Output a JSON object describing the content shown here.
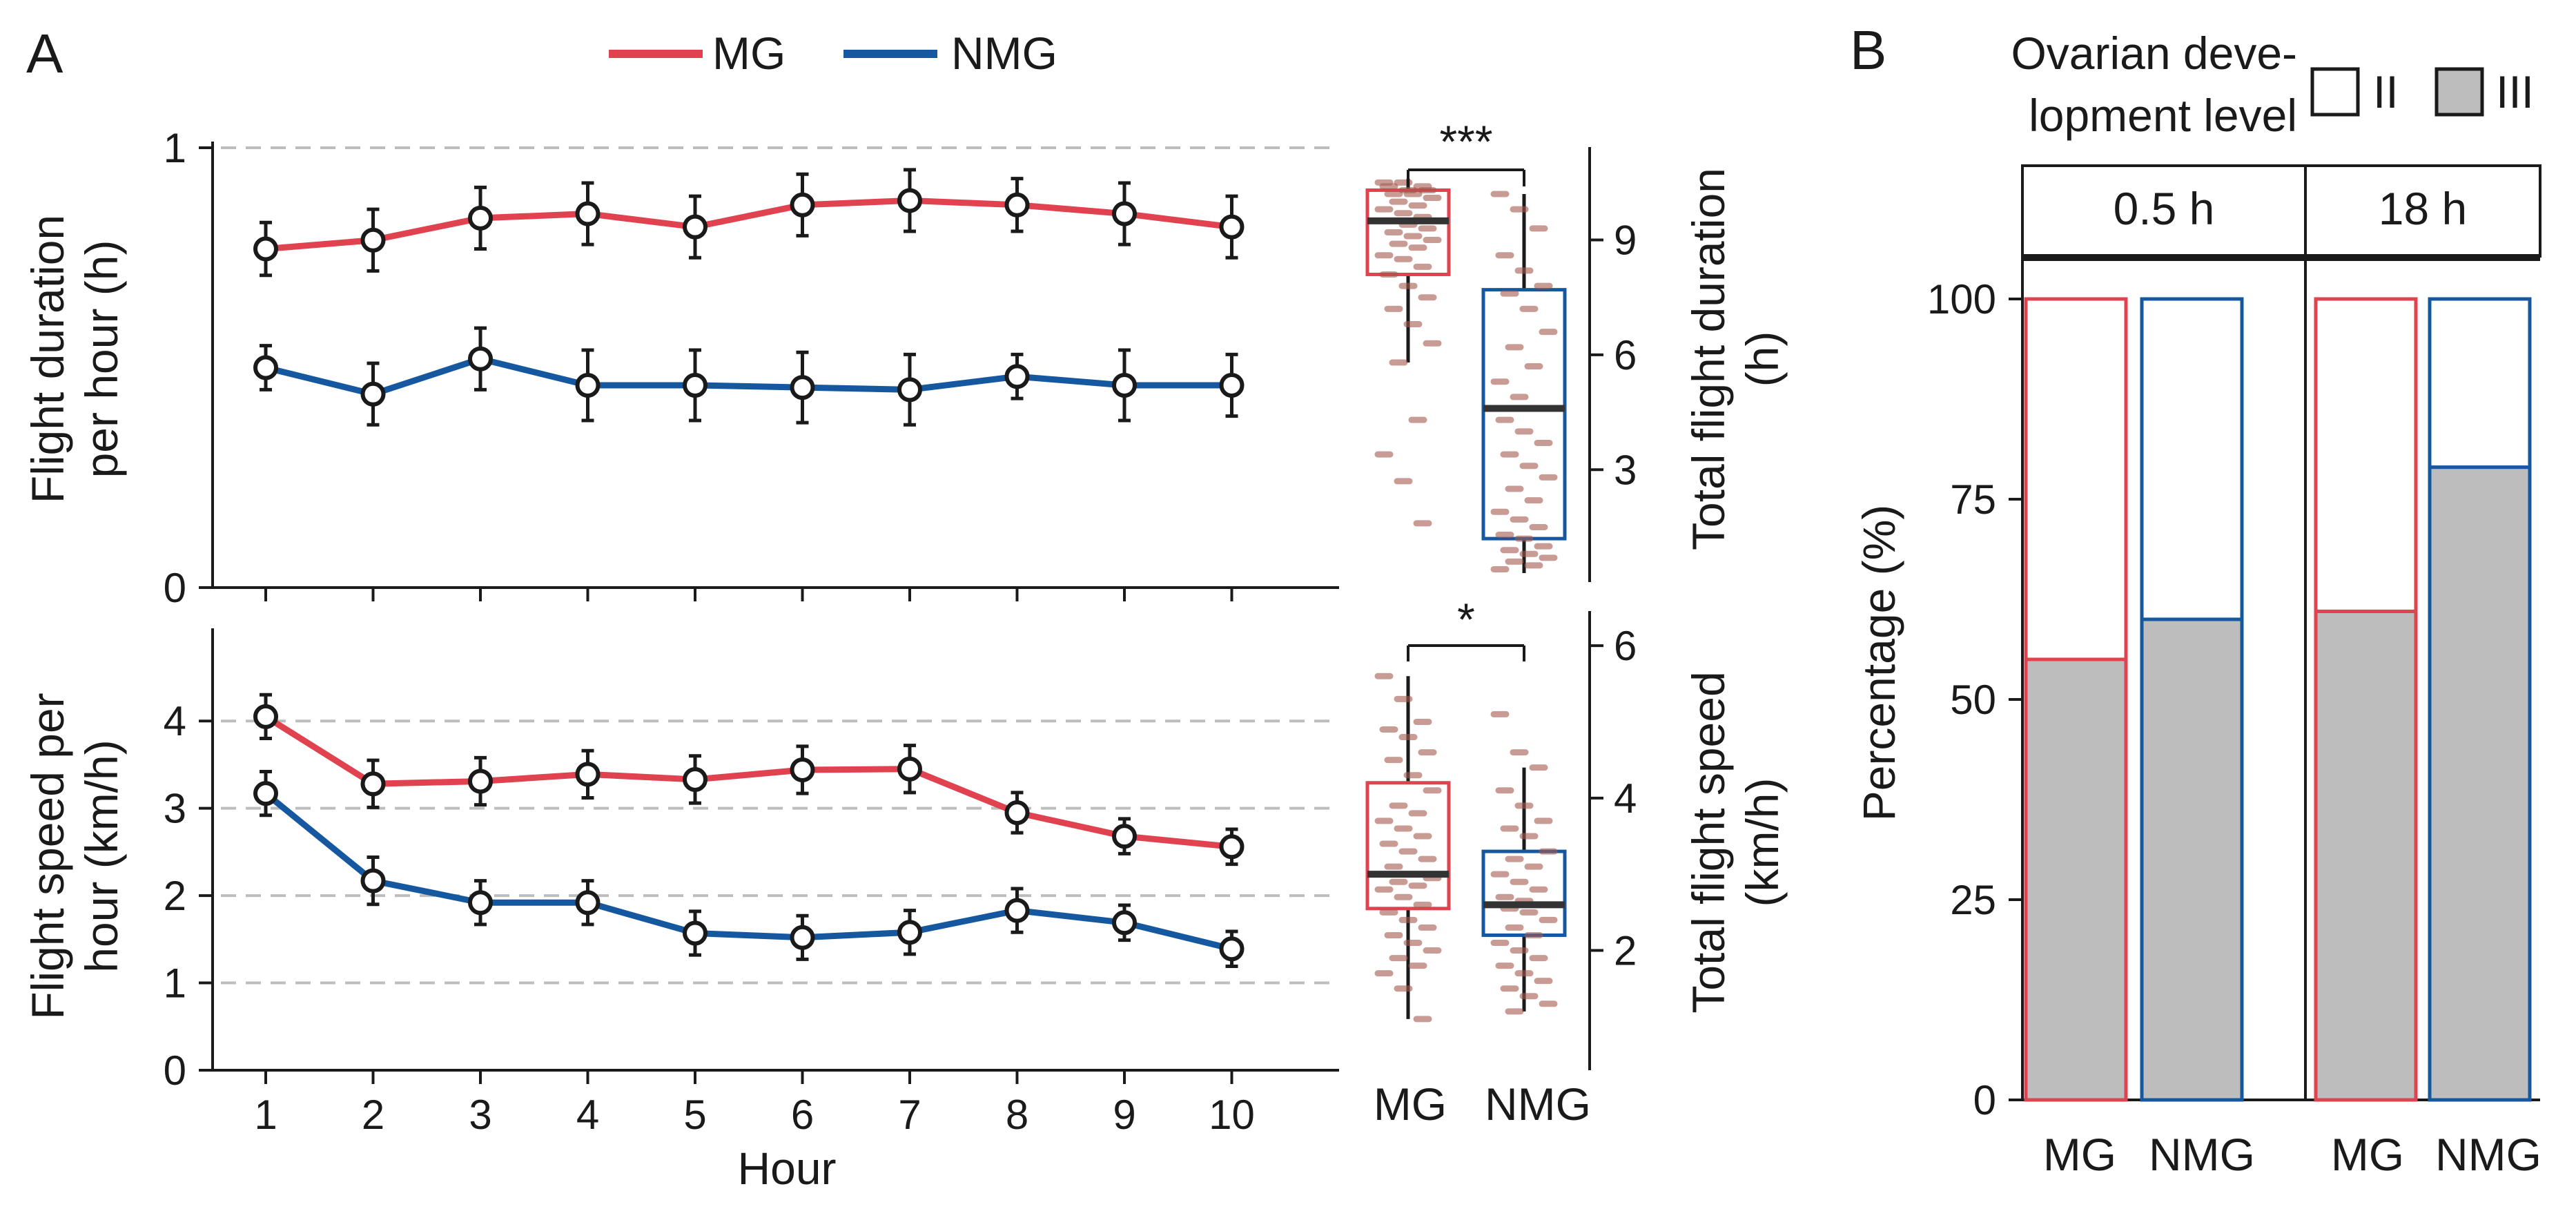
{
  "colors": {
    "MG": "#e0424f",
    "NMG": "#1558a0",
    "jitter": "#a4584f",
    "bar_fill": "#bdbdbd",
    "grid": "#bdbdbd"
  },
  "panels": {
    "A": "A",
    "B": "B"
  },
  "legend": {
    "entries": [
      "MG",
      "NMG"
    ]
  },
  "chart_data": [
    {
      "id": "duration",
      "type": "line",
      "ylabel": [
        "Flight duration",
        "per hour (h)"
      ],
      "xlabel": "",
      "x": [
        1,
        2,
        3,
        4,
        5,
        6,
        7,
        8,
        9,
        10
      ],
      "ylim": [
        0,
        1
      ],
      "yticks": [
        0,
        1
      ],
      "grid_y": [
        1
      ],
      "series": [
        {
          "name": "MG",
          "values": [
            0.77,
            0.79,
            0.84,
            0.85,
            0.82,
            0.87,
            0.88,
            0.87,
            0.85,
            0.82
          ],
          "errors": [
            0.06,
            0.07,
            0.07,
            0.07,
            0.07,
            0.07,
            0.07,
            0.06,
            0.07,
            0.07
          ]
        },
        {
          "name": "NMG",
          "values": [
            0.5,
            0.44,
            0.52,
            0.46,
            0.46,
            0.455,
            0.45,
            0.48,
            0.46,
            0.46
          ],
          "errors": [
            0.05,
            0.07,
            0.07,
            0.08,
            0.08,
            0.08,
            0.08,
            0.05,
            0.08,
            0.07
          ]
        }
      ]
    },
    {
      "id": "speed",
      "type": "line",
      "ylabel": [
        "Flight speed per",
        "hour (km/h)"
      ],
      "xlabel": "Hour",
      "x": [
        1,
        2,
        3,
        4,
        5,
        6,
        7,
        8,
        9,
        10
      ],
      "xticks": [
        "1",
        "2",
        "3",
        "4",
        "5",
        "6",
        "7",
        "8",
        "9",
        "10"
      ],
      "ylim": [
        0,
        4.5
      ],
      "yticks": [
        0,
        1,
        2,
        3,
        4
      ],
      "grid_y": [
        1,
        2,
        3,
        4
      ],
      "series": [
        {
          "name": "MG",
          "values": [
            4.05,
            3.28,
            3.31,
            3.39,
            3.33,
            3.44,
            3.45,
            2.95,
            2.68,
            2.56
          ],
          "errors": [
            0.25,
            0.27,
            0.27,
            0.27,
            0.27,
            0.27,
            0.27,
            0.23,
            0.2,
            0.2
          ]
        },
        {
          "name": "NMG",
          "values": [
            3.17,
            2.17,
            1.92,
            1.92,
            1.57,
            1.52,
            1.58,
            1.83,
            1.69,
            1.39
          ],
          "errors": [
            0.25,
            0.27,
            0.25,
            0.25,
            0.25,
            0.25,
            0.25,
            0.25,
            0.2,
            0.2
          ]
        }
      ]
    },
    {
      "id": "total-duration",
      "type": "box",
      "ylabel": [
        "Total flight duration",
        "(h)"
      ],
      "categories": [
        "MG",
        "NMG"
      ],
      "ylim": [
        0.3,
        11.3
      ],
      "yticks": [
        3,
        6,
        9
      ],
      "boxes": [
        {
          "name": "MG",
          "q1": 8.1,
          "median": 9.5,
          "q3": 10.3,
          "whisker_low": 5.8,
          "whisker_high": 10.6
        },
        {
          "name": "NMG",
          "q1": 1.2,
          "median": 4.6,
          "q3": 7.7,
          "whisker_low": 0.3,
          "whisker_high": 10.2
        }
      ],
      "points": {
        "MG": [
          10.5,
          10.5,
          10.4,
          10.4,
          10.3,
          10.3,
          10.2,
          10.2,
          10.1,
          10.0,
          9.9,
          9.8,
          9.7,
          9.6,
          9.5,
          9.4,
          9.3,
          9.2,
          9.1,
          9.0,
          8.9,
          8.8,
          8.6,
          8.5,
          8.3,
          8.1,
          7.8,
          7.5,
          7.2,
          6.8,
          6.3,
          5.8,
          4.3,
          3.4,
          2.7,
          1.6
        ],
        "NMG": [
          10.2,
          9.8,
          9.3,
          8.6,
          8.2,
          7.8,
          7.6,
          7.2,
          6.6,
          6.2,
          5.7,
          5.3,
          4.9,
          4.6,
          4.3,
          4.0,
          3.7,
          3.4,
          3.1,
          2.8,
          2.5,
          2.2,
          1.9,
          1.7,
          1.5,
          1.3,
          1.2,
          1.0,
          0.9,
          0.8,
          0.7,
          0.6,
          0.5,
          0.4
        ]
      },
      "significance": "***"
    },
    {
      "id": "total-speed",
      "type": "box",
      "ylabel": [
        "Total flight speed",
        "(km/h)"
      ],
      "categories": [
        "MG",
        "NMG"
      ],
      "ylim": [
        0.7,
        6.3
      ],
      "yticks": [
        2,
        4,
        6
      ],
      "boxes": [
        {
          "name": "MG",
          "q1": 2.55,
          "median": 3.0,
          "q3": 4.2,
          "whisker_low": 1.1,
          "whisker_high": 5.6
        },
        {
          "name": "NMG",
          "q1": 2.2,
          "median": 2.6,
          "q3": 3.3,
          "whisker_low": 1.2,
          "whisker_high": 4.4
        }
      ],
      "points": {
        "MG": [
          5.6,
          5.3,
          5.0,
          4.9,
          4.8,
          4.6,
          4.5,
          4.3,
          4.1,
          3.9,
          3.8,
          3.7,
          3.6,
          3.5,
          3.4,
          3.3,
          3.2,
          3.1,
          3.0,
          2.95,
          2.9,
          2.85,
          2.8,
          2.7,
          2.6,
          2.5,
          2.4,
          2.3,
          2.2,
          2.1,
          2.0,
          1.9,
          1.8,
          1.7,
          1.5,
          1.1
        ],
        "NMG": [
          5.1,
          4.6,
          4.4,
          4.1,
          3.9,
          3.7,
          3.6,
          3.5,
          3.3,
          3.2,
          3.1,
          3.0,
          2.9,
          2.8,
          2.7,
          2.65,
          2.6,
          2.55,
          2.5,
          2.4,
          2.3,
          2.2,
          2.1,
          2.0,
          1.9,
          1.8,
          1.7,
          1.6,
          1.5,
          1.4,
          1.3,
          1.2
        ]
      },
      "significance": "*"
    },
    {
      "id": "ovarian",
      "type": "bar",
      "stacked": true,
      "title": [
        "Ovarian deve-",
        "lopment level"
      ],
      "legend": [
        "II",
        "III"
      ],
      "ylabel": "Percentage (%)",
      "ylim": [
        0,
        100
      ],
      "yticks": [
        0,
        25,
        50,
        75,
        100
      ],
      "facets": [
        {
          "label": "0.5 h",
          "categories": [
            "MG",
            "NMG"
          ],
          "III": [
            55,
            60
          ],
          "II": [
            45,
            40
          ]
        },
        {
          "label": "18 h",
          "categories": [
            "MG",
            "NMG"
          ],
          "III": [
            61,
            79
          ],
          "II": [
            39,
            21
          ]
        }
      ]
    }
  ]
}
